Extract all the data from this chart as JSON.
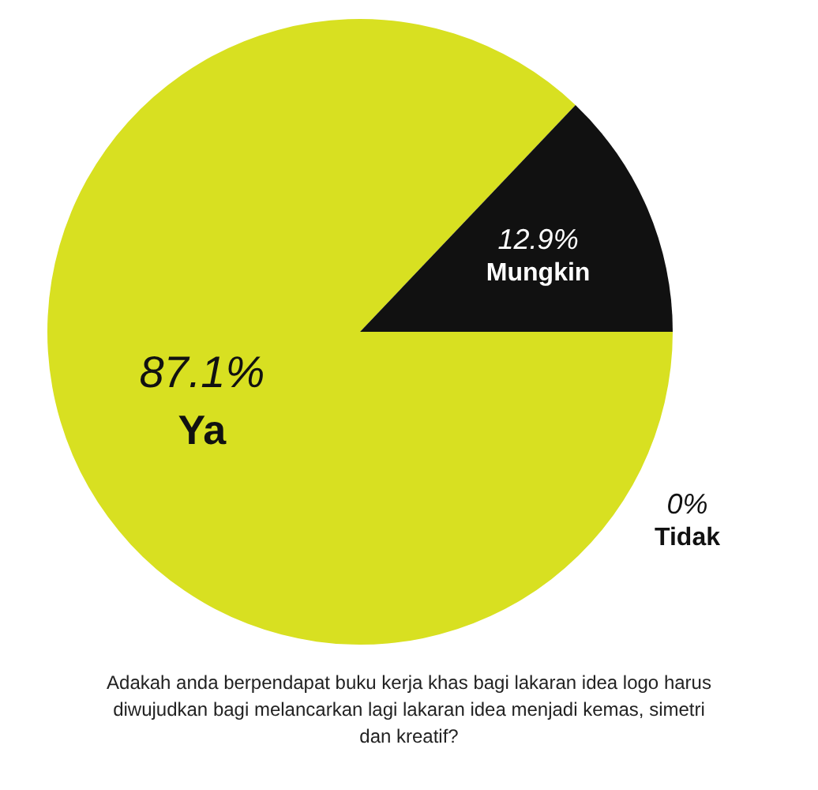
{
  "chart_data": {
    "type": "pie",
    "title": "Adakah anda berpendapat buku kerja khas bagi lakaran idea logo harus diwujudkan bagi melancarkan lagi lakaran idea menjadi kemas, simetri dan kreatif?",
    "categories": [
      "Ya",
      "Mungkin",
      "Tidak"
    ],
    "values": [
      87.1,
      12.9,
      0
    ],
    "value_labels": [
      "87.1%",
      "12.9%",
      "0%"
    ],
    "colors": [
      "#d8e021",
      "#111111",
      "#ffffff"
    ]
  }
}
